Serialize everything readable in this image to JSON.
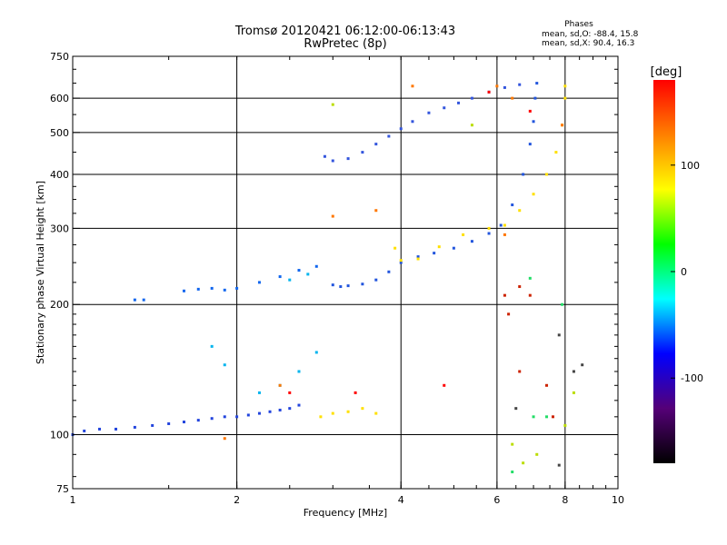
{
  "header": {
    "title_line1": "Tromsø 20120421 06:12:00-06:13:43",
    "title_line2": "RwPretec (8p)",
    "phases_title": "Phases",
    "phases_line1": "mean, sd,O: -88.4, 15.8",
    "phases_line2": "mean, sd,X:  90.4, 16.3"
  },
  "chart_data": {
    "type": "scatter",
    "xlabel": "Frequency [MHz]",
    "ylabel": "Stationary phase Virtual Height [km]",
    "xlim": [
      1,
      10
    ],
    "ylim": [
      75,
      750
    ],
    "xscale": "log",
    "yscale": "log",
    "grid": true,
    "x_ticks": [
      1,
      2,
      4,
      6,
      8,
      10
    ],
    "y_ticks": [
      75,
      100,
      200,
      300,
      400,
      500,
      600,
      750
    ],
    "colorbar": {
      "label": "[deg]",
      "range": [
        -180,
        180
      ],
      "ticks": [
        100,
        0,
        -100
      ],
      "colors": [
        "#ff0000",
        "#ff8000",
        "#ffff00",
        "#00ff00",
        "#00ffff",
        "#0000ff",
        "#550077",
        "#000000"
      ]
    },
    "series": [
      {
        "color": "#2244dd",
        "points": [
          [
            1.0,
            100
          ],
          [
            1.05,
            102
          ],
          [
            1.12,
            103
          ],
          [
            1.2,
            103
          ],
          [
            1.3,
            104
          ],
          [
            1.4,
            105
          ],
          [
            1.5,
            106
          ],
          [
            1.6,
            107
          ],
          [
            1.7,
            108
          ],
          [
            1.8,
            109
          ],
          [
            1.9,
            110
          ],
          [
            2.0,
            110
          ],
          [
            2.1,
            111
          ],
          [
            2.2,
            112
          ],
          [
            2.3,
            113
          ],
          [
            2.4,
            114
          ],
          [
            2.5,
            115
          ],
          [
            2.6,
            117
          ]
        ]
      },
      {
        "color": "#2255dd",
        "points": [
          [
            3.0,
            222
          ],
          [
            3.1,
            220
          ],
          [
            3.2,
            221
          ],
          [
            3.4,
            223
          ],
          [
            3.6,
            228
          ],
          [
            3.8,
            238
          ],
          [
            4.0,
            250
          ],
          [
            4.3,
            258
          ],
          [
            4.6,
            263
          ],
          [
            5.0,
            270
          ],
          [
            5.4,
            280
          ],
          [
            5.8,
            292
          ],
          [
            6.1,
            305
          ],
          [
            6.4,
            340
          ],
          [
            6.7,
            400
          ],
          [
            6.9,
            470
          ],
          [
            7.0,
            530
          ],
          [
            7.05,
            600
          ],
          [
            7.1,
            650
          ]
        ]
      },
      {
        "color": "#3355dd",
        "points": [
          [
            2.9,
            440
          ],
          [
            3.0,
            430
          ],
          [
            3.2,
            435
          ],
          [
            3.4,
            450
          ],
          [
            3.6,
            470
          ],
          [
            3.8,
            490
          ],
          [
            4.0,
            510
          ],
          [
            4.2,
            530
          ],
          [
            4.5,
            555
          ],
          [
            4.8,
            570
          ],
          [
            5.1,
            585
          ],
          [
            5.4,
            600
          ],
          [
            5.8,
            620
          ],
          [
            6.2,
            635
          ],
          [
            6.6,
            645
          ]
        ]
      },
      {
        "color": "#1166ee",
        "points": [
          [
            1.3,
            205
          ],
          [
            1.35,
            205
          ],
          [
            1.6,
            215
          ],
          [
            1.7,
            217
          ],
          [
            1.8,
            218
          ],
          [
            1.9,
            216
          ],
          [
            2.0,
            218
          ],
          [
            2.2,
            225
          ],
          [
            2.4,
            232
          ],
          [
            2.6,
            240
          ],
          [
            2.8,
            245
          ]
        ]
      },
      {
        "color": "#ffe000",
        "points": [
          [
            2.85,
            110
          ],
          [
            3.0,
            112
          ],
          [
            3.2,
            113
          ],
          [
            3.4,
            115
          ],
          [
            3.6,
            112
          ],
          [
            3.9,
            270
          ],
          [
            4.0,
            253
          ],
          [
            4.3,
            255
          ],
          [
            4.7,
            272
          ],
          [
            5.2,
            290
          ],
          [
            5.8,
            300
          ],
          [
            6.2,
            305
          ],
          [
            6.6,
            330
          ],
          [
            7.0,
            360
          ],
          [
            7.4,
            400
          ],
          [
            7.7,
            450
          ],
          [
            7.9,
            520
          ],
          [
            8.0,
            600
          ],
          [
            8.0,
            640
          ]
        ]
      },
      {
        "color": "#00b4ee",
        "points": [
          [
            1.8,
            160
          ],
          [
            1.9,
            145
          ],
          [
            2.2,
            125
          ],
          [
            2.4,
            130
          ],
          [
            2.6,
            140
          ],
          [
            2.8,
            155
          ],
          [
            2.5,
            228
          ],
          [
            2.7,
            235
          ]
        ]
      },
      {
        "color": "#ff7700",
        "points": [
          [
            1.9,
            98
          ],
          [
            2.4,
            130
          ],
          [
            3.0,
            320
          ],
          [
            3.6,
            330
          ],
          [
            4.2,
            640
          ],
          [
            6.0,
            640
          ],
          [
            6.4,
            600
          ],
          [
            6.2,
            290
          ],
          [
            7.9,
            520
          ]
        ]
      },
      {
        "color": "#cc2200",
        "points": [
          [
            6.2,
            210
          ],
          [
            6.3,
            190
          ],
          [
            6.6,
            220
          ],
          [
            6.9,
            210
          ],
          [
            6.6,
            140
          ],
          [
            7.4,
            130
          ],
          [
            7.6,
            110
          ]
        ]
      },
      {
        "color": "#ff0000",
        "points": [
          [
            5.8,
            620
          ],
          [
            6.9,
            560
          ],
          [
            4.8,
            130
          ],
          [
            3.3,
            125
          ],
          [
            2.5,
            125
          ]
        ]
      },
      {
        "color": "#bbdd00",
        "points": [
          [
            3.0,
            580
          ],
          [
            5.4,
            520
          ],
          [
            6.4,
            95
          ],
          [
            6.7,
            86
          ],
          [
            8.0,
            105
          ],
          [
            8.3,
            125
          ],
          [
            7.1,
            90
          ]
        ]
      },
      {
        "color": "#22dd66",
        "points": [
          [
            6.4,
            82
          ],
          [
            7.0,
            110
          ],
          [
            7.4,
            110
          ],
          [
            7.9,
            200
          ],
          [
            6.9,
            230
          ]
        ]
      },
      {
        "color": "#444444",
        "points": [
          [
            6.5,
            115
          ],
          [
            7.8,
            170
          ],
          [
            7.8,
            85
          ],
          [
            8.3,
            140
          ],
          [
            8.6,
            145
          ]
        ]
      }
    ]
  }
}
